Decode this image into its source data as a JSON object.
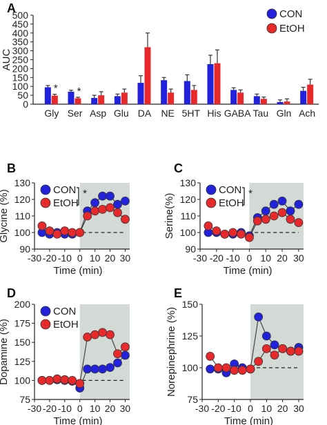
{
  "colors": {
    "con": "#2222dd",
    "etoh": "#e8292b",
    "shade": "#d3d9d4"
  },
  "chart_data": [
    {
      "panel": "A",
      "type": "bar",
      "ylabel": "AUC",
      "ylim": [
        0,
        500
      ],
      "yticks": [
        0,
        50,
        100,
        150,
        200,
        250,
        300,
        350,
        400,
        450,
        500
      ],
      "categories": [
        "Gly",
        "Ser",
        "Asp",
        "Glu",
        "DA",
        "NE",
        "5HT",
        "His",
        "GABA",
        "Tau",
        "Gln",
        "Ach"
      ],
      "series": [
        {
          "name": "CON",
          "values": [
            95,
            70,
            35,
            45,
            120,
            135,
            130,
            225,
            80,
            45,
            12,
            75
          ],
          "errors": [
            10,
            8,
            15,
            12,
            40,
            15,
            35,
            50,
            12,
            12,
            12,
            20
          ]
        },
        {
          "name": "EtOH",
          "values": [
            48,
            33,
            50,
            65,
            320,
            65,
            80,
            230,
            65,
            30,
            15,
            110
          ],
          "errors": [
            8,
            6,
            20,
            20,
            80,
            20,
            25,
            75,
            15,
            10,
            15,
            30
          ]
        }
      ],
      "annotations": [
        {
          "category": "Gly",
          "text": "*"
        },
        {
          "category": "Ser",
          "text": "*"
        }
      ],
      "legend": [
        "CON",
        "EtOH"
      ],
      "legend_position": "top-right"
    },
    {
      "panel": "B",
      "type": "line",
      "ylabel": "Glycine (%)",
      "xlabel": "Time (min)",
      "ylim": [
        90,
        130
      ],
      "yticks": [
        90,
        100,
        110,
        120,
        130
      ],
      "xlim": [
        -30,
        30
      ],
      "xticks": [
        -30,
        -20,
        -10,
        0,
        10,
        20,
        30
      ],
      "shaded_x": [
        0,
        33
      ],
      "baseline": 100,
      "series": [
        {
          "name": "CON",
          "x": [
            -25,
            -20,
            -15,
            -10,
            -5,
            0,
            5,
            10,
            15,
            20,
            25,
            30
          ],
          "y": [
            100,
            99,
            100,
            99,
            99,
            100,
            113,
            118,
            122,
            122,
            117,
            119
          ]
        },
        {
          "name": "EtOH",
          "x": [
            -25,
            -20,
            -15,
            -10,
            -5,
            0,
            5,
            10,
            15,
            20,
            25,
            30
          ],
          "y": [
            104,
            101,
            99,
            101,
            100,
            100,
            110,
            113,
            114,
            115,
            112,
            108
          ]
        }
      ],
      "legend": [
        "CON",
        "EtOH"
      ],
      "significance": "*"
    },
    {
      "panel": "C",
      "type": "line",
      "ylabel": "Serine(%)",
      "xlabel": "Time (min)",
      "ylim": [
        90,
        130
      ],
      "yticks": [
        90,
        100,
        110,
        120,
        130
      ],
      "xlim": [
        -30,
        30
      ],
      "xticks": [
        -30,
        -20,
        -10,
        0,
        10,
        20,
        30
      ],
      "shaded_x": [
        0,
        33
      ],
      "baseline": 100,
      "series": [
        {
          "name": "CON",
          "x": [
            -25,
            -20,
            -15,
            -10,
            -5,
            0,
            5,
            10,
            15,
            20,
            25,
            30
          ],
          "y": [
            100,
            100,
            99,
            99,
            100,
            98,
            109,
            113,
            117,
            119,
            113,
            117
          ]
        },
        {
          "name": "EtOH",
          "x": [
            -25,
            -20,
            -15,
            -10,
            -5,
            0,
            5,
            10,
            15,
            20,
            25,
            30
          ],
          "y": [
            104,
            101,
            99,
            100,
            99,
            97,
            107,
            108,
            110,
            112,
            108,
            106
          ]
        }
      ],
      "legend": [
        "CON",
        "EtOH"
      ],
      "significance": "*"
    },
    {
      "panel": "D",
      "type": "line",
      "ylabel": "Dopamine (%)",
      "xlabel": "Time (min)",
      "ylim": [
        75,
        200
      ],
      "yticks": [
        75,
        100,
        125,
        150,
        175,
        200
      ],
      "xlim": [
        -30,
        30
      ],
      "xticks": [
        -30,
        -20,
        -10,
        0,
        10,
        20,
        30
      ],
      "shaded_x": [
        0,
        33
      ],
      "baseline": 100,
      "series": [
        {
          "name": "CON",
          "x": [
            -25,
            -20,
            -15,
            -10,
            -5,
            0,
            5,
            10,
            15,
            20,
            25,
            30
          ],
          "y": [
            100,
            100,
            101,
            100,
            99,
            90,
            115,
            115,
            115,
            117,
            123,
            133
          ]
        },
        {
          "name": "EtOH",
          "x": [
            -25,
            -20,
            -15,
            -10,
            -5,
            0,
            5,
            10,
            15,
            20,
            25,
            30
          ],
          "y": [
            100,
            100,
            102,
            101,
            100,
            96,
            157,
            160,
            163,
            160,
            135,
            144
          ]
        }
      ],
      "legend": [
        "CON",
        "EtOH"
      ]
    },
    {
      "panel": "E",
      "type": "line",
      "ylabel": "Norepinephrine (%)",
      "xlabel": "Time (min)",
      "ylim": [
        75,
        150
      ],
      "yticks": [
        75,
        100,
        125,
        150
      ],
      "xlim": [
        -30,
        30
      ],
      "xticks": [
        -30,
        -20,
        -10,
        0,
        10,
        20,
        30
      ],
      "shaded_x": [
        0,
        33
      ],
      "baseline": 100,
      "series": [
        {
          "name": "CON",
          "x": [
            -25,
            -20,
            -15,
            -10,
            -5,
            0,
            5,
            10,
            15,
            20,
            25,
            30
          ],
          "y": [
            99,
            99,
            96,
            103,
            100,
            99,
            140,
            125,
            118,
            115,
            113,
            116
          ]
        },
        {
          "name": "EtOH",
          "x": [
            -25,
            -20,
            -15,
            -10,
            -5,
            0,
            5,
            10,
            15,
            20,
            25,
            30
          ],
          "y": [
            109,
            100,
            100,
            98,
            98,
            99,
            105,
            115,
            110,
            115,
            113,
            113
          ]
        }
      ]
    }
  ]
}
